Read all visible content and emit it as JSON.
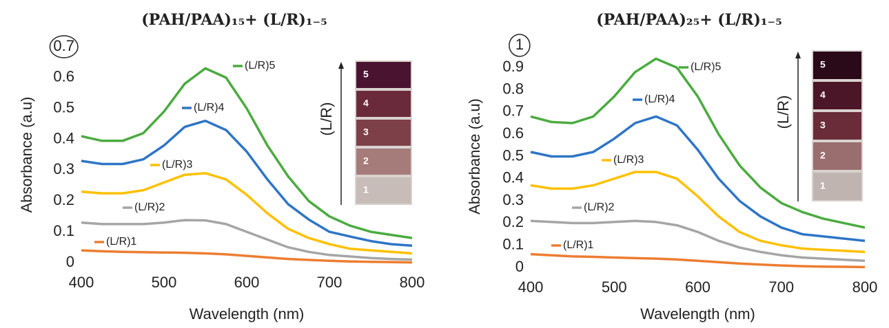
{
  "chart_data": [
    {
      "type": "line",
      "title": "(PAH/PAA)₁₅+ (L/R)₁₋₅",
      "xlabel": "Wavelength (nm)",
      "ylabel": "Absorbance (a.u)",
      "x": [
        400,
        425,
        450,
        475,
        500,
        525,
        550,
        575,
        600,
        625,
        650,
        675,
        700,
        725,
        750,
        775,
        800
      ],
      "xlim": [
        400,
        800
      ],
      "xticks": [
        400,
        500,
        600,
        700,
        800
      ],
      "ylim": [
        0,
        0.7
      ],
      "yticks": [
        0,
        0.1,
        0.2,
        0.3,
        0.4,
        0.5,
        0.6,
        0.7
      ],
      "series": [
        {
          "name": "(L/R)1",
          "color": "#ed7d31",
          "values": [
            0.04,
            0.037,
            0.035,
            0.034,
            0.033,
            0.032,
            0.03,
            0.027,
            0.022,
            0.017,
            0.012,
            0.009,
            0.006,
            0.004,
            0.003,
            0.002,
            0.001
          ]
        },
        {
          "name": "(L/R)2",
          "color": "#a5a5a5",
          "values": [
            0.13,
            0.125,
            0.125,
            0.125,
            0.13,
            0.138,
            0.137,
            0.125,
            0.1,
            0.075,
            0.05,
            0.035,
            0.025,
            0.02,
            0.015,
            0.012,
            0.01
          ]
        },
        {
          "name": "(L/R)3",
          "color": "#ffc000",
          "values": [
            0.23,
            0.225,
            0.225,
            0.235,
            0.26,
            0.285,
            0.29,
            0.27,
            0.22,
            0.16,
            0.11,
            0.08,
            0.06,
            0.045,
            0.04,
            0.035,
            0.03
          ]
        },
        {
          "name": "(L/R)4",
          "color": "#2e75c6",
          "values": [
            0.33,
            0.32,
            0.32,
            0.335,
            0.38,
            0.44,
            0.46,
            0.43,
            0.36,
            0.27,
            0.19,
            0.14,
            0.1,
            0.085,
            0.07,
            0.06,
            0.055
          ]
        },
        {
          "name": "(L/R)5",
          "color": "#4aab3f",
          "values": [
            0.41,
            0.395,
            0.395,
            0.42,
            0.49,
            0.58,
            0.63,
            0.6,
            0.5,
            0.38,
            0.28,
            0.2,
            0.15,
            0.12,
            0.1,
            0.09,
            0.08
          ]
        }
      ],
      "inset": {
        "label": "(L/R)",
        "samples": [
          {
            "label": "1",
            "color": "#c8bcb8"
          },
          {
            "label": "2",
            "color": "#a57c7a"
          },
          {
            "label": "3",
            "color": "#7e4048"
          },
          {
            "label": "4",
            "color": "#6a2a3c"
          },
          {
            "label": "5",
            "color": "#4a1430"
          }
        ]
      }
    },
    {
      "type": "line",
      "title": "(PAH/PAA)₂₅+ (L/R)₁₋₅",
      "xlabel": "Wavelength (nm)",
      "ylabel": "Absorbance (a.u)",
      "x": [
        400,
        425,
        450,
        475,
        500,
        525,
        550,
        575,
        600,
        625,
        650,
        675,
        700,
        725,
        750,
        775,
        800
      ],
      "xlim": [
        400,
        800
      ],
      "xticks": [
        400,
        500,
        600,
        700,
        800
      ],
      "ylim": [
        0,
        1
      ],
      "yticks": [
        0,
        0.1,
        0.2,
        0.3,
        0.4,
        0.5,
        0.6,
        0.7,
        0.8,
        0.9,
        1
      ],
      "series": [
        {
          "name": "(L/R)1",
          "color": "#ed7d31",
          "values": [
            0.06,
            0.055,
            0.05,
            0.048,
            0.045,
            0.042,
            0.04,
            0.036,
            0.03,
            0.024,
            0.018,
            0.013,
            0.009,
            0.006,
            0.004,
            0.003,
            0.002
          ]
        },
        {
          "name": "(L/R)2",
          "color": "#a5a5a5",
          "values": [
            0.21,
            0.205,
            0.2,
            0.2,
            0.205,
            0.21,
            0.205,
            0.19,
            0.16,
            0.12,
            0.09,
            0.07,
            0.055,
            0.045,
            0.04,
            0.035,
            0.03
          ]
        },
        {
          "name": "(L/R)3",
          "color": "#ffc000",
          "values": [
            0.37,
            0.355,
            0.355,
            0.37,
            0.4,
            0.43,
            0.43,
            0.4,
            0.32,
            0.23,
            0.16,
            0.12,
            0.1,
            0.085,
            0.08,
            0.075,
            0.07
          ]
        },
        {
          "name": "(L/R)4",
          "color": "#2e75c6",
          "values": [
            0.52,
            0.5,
            0.5,
            0.52,
            0.58,
            0.65,
            0.68,
            0.64,
            0.53,
            0.4,
            0.3,
            0.23,
            0.18,
            0.15,
            0.14,
            0.13,
            0.12
          ]
        },
        {
          "name": "(L/R)5",
          "color": "#4aab3f",
          "values": [
            0.68,
            0.655,
            0.65,
            0.68,
            0.77,
            0.88,
            0.94,
            0.9,
            0.77,
            0.6,
            0.46,
            0.36,
            0.29,
            0.25,
            0.22,
            0.2,
            0.18
          ]
        }
      ],
      "inset": {
        "label": "(L/R)",
        "samples": [
          {
            "label": "1",
            "color": "#c0b4b0"
          },
          {
            "label": "2",
            "color": "#9a6e6e"
          },
          {
            "label": "3",
            "color": "#6a2c38"
          },
          {
            "label": "4",
            "color": "#4a1628"
          },
          {
            "label": "5",
            "color": "#2a0a18"
          }
        ]
      }
    }
  ]
}
